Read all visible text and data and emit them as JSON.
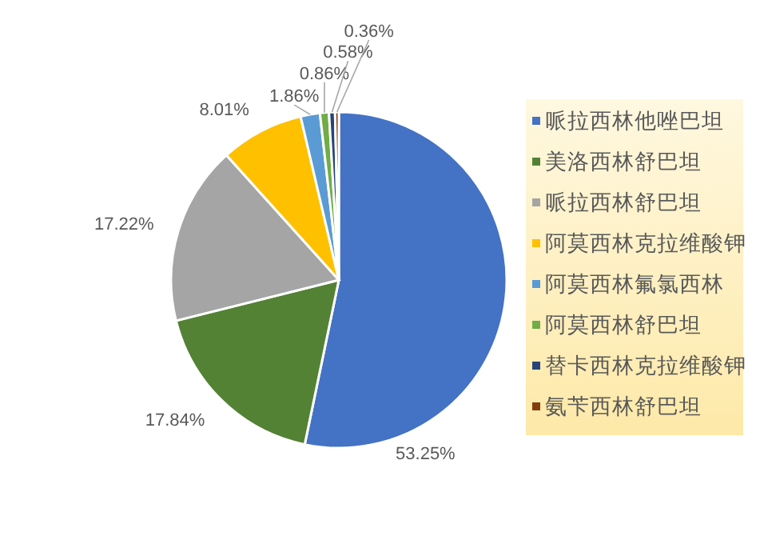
{
  "chart_data": {
    "type": "pie",
    "categories": [
      "哌拉西林他唑巴坦",
      "美洛西林舒巴坦",
      "哌拉西林舒巴坦",
      "阿莫西林克拉维酸钾",
      "阿莫西林氟氯西林",
      "阿莫西林舒巴坦",
      "替卡西林克拉维酸钾",
      "氨苄西林舒巴坦"
    ],
    "values": [
      53.25,
      17.84,
      17.22,
      8.01,
      1.86,
      0.86,
      0.58,
      0.36
    ],
    "colors": [
      "#4472c4",
      "#548235",
      "#a5a5a5",
      "#ffc000",
      "#5b9bd5",
      "#70ad47",
      "#264478",
      "#843c0c"
    ],
    "value_labels": [
      "53.25%",
      "17.84%",
      "17.22%",
      "8.01%",
      "1.86%",
      "0.86%",
      "0.58%",
      "0.36%"
    ],
    "legend": "right"
  }
}
